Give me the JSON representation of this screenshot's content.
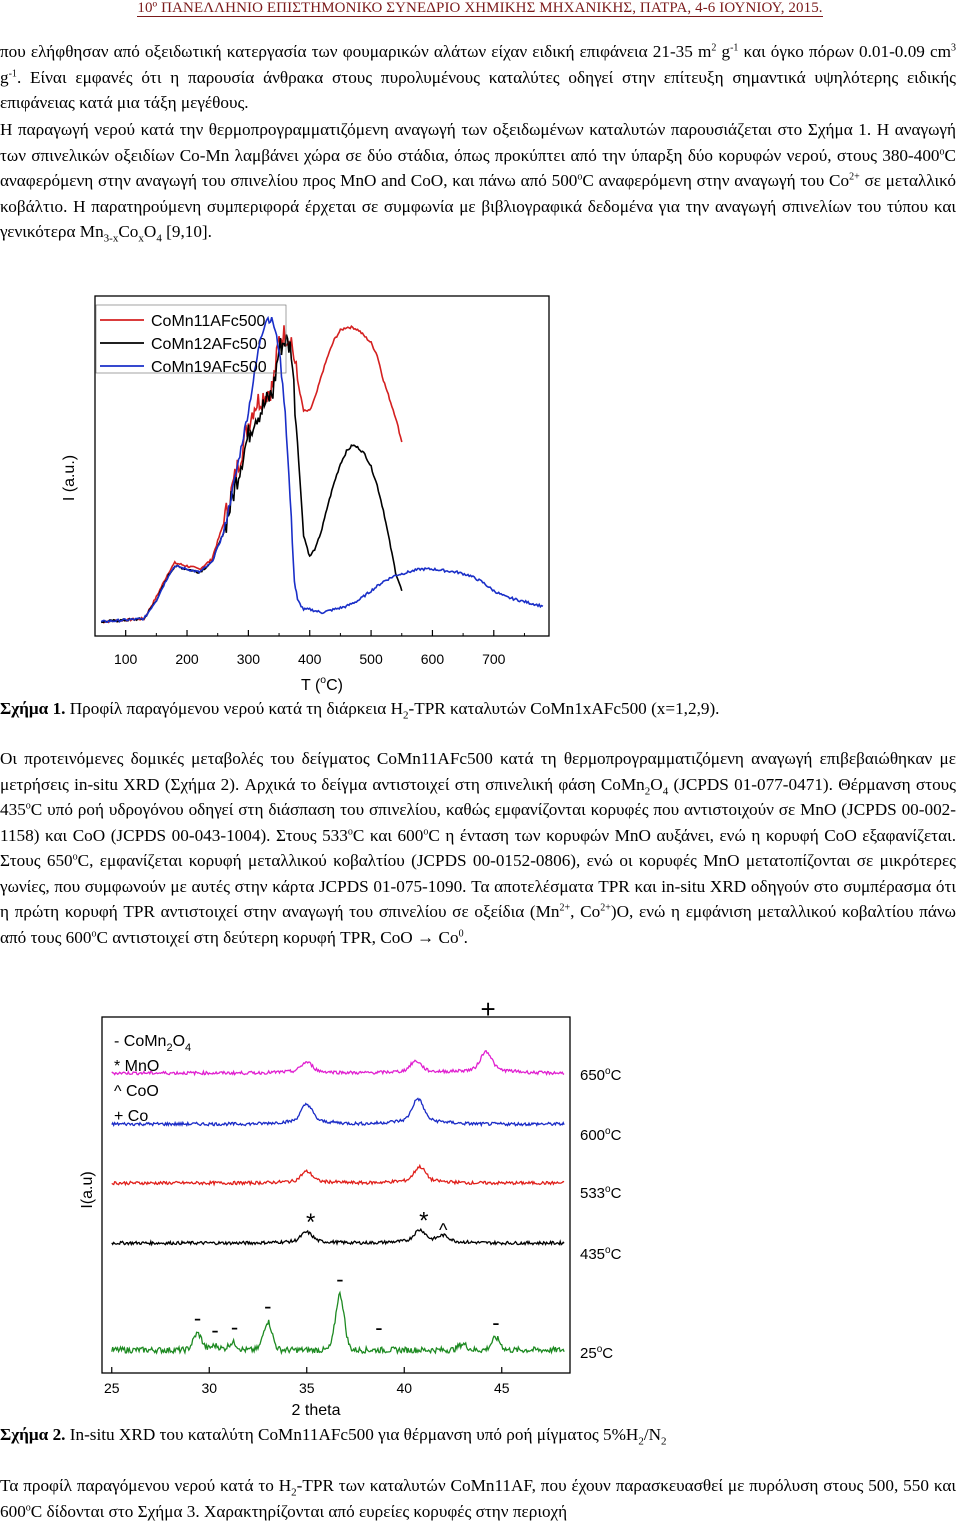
{
  "header": {
    "text": "10º ΠΑΝΕΛΛΗΝΙΟ ΕΠΙΣΤΗΜΟΝΙΚΟ ΣΥΝΕΔΡΙΟ ΧΗΜΙΚΗΣ ΜΗΧΑΝΙΚΗΣ, ΠΑΤΡΑ, 4-6 ΙΟΥΝΙΟΥ, 2015."
  },
  "para1": {
    "a": "που ελήφθησαν από οξειδωτική κατεργασία των φουμαρικών αλάτων είχαν ειδική επιφάνεια 21-35 m",
    "a_sup": "2",
    "b": " g",
    "b_sup": "-1",
    "c": " και όγκο πόρων 0.01-0.09 cm",
    "c_sup": "3",
    "d": " g",
    "d_sup": "-1",
    "e": ". Είναι εμφανές ότι η παρουσία άνθρακα στους πυρολυμένους καταλύτες οδηγεί στην επίτευξη σημαντικά υψηλότερης ειδικής επιφάνειας κατά μια τάξη μεγέθους."
  },
  "para2": {
    "a": "Η παραγωγή νερού κατά την θερμοπρογραμματιζόμενη αναγωγή των οξειδωμένων καταλυτών παρουσιάζεται στο Σχήμα 1. Η αναγωγή των σπινελικών οξειδίων Co-Mn λαμβάνει χώρα σε δύο στάδια, όπως προκύπτει από την ύπαρξη δύο κορυφών νερού, στους 380-400",
    "a_sup": "o",
    "b": "C αναφερόμενη στην αναγωγή του σπινελίου προς MnO and CoO, και πάνω από 500",
    "b_sup": "o",
    "c": "C αναφερόμενη στην αναγωγή του Co",
    "c_sup": "2+",
    "d": " σε μεταλλικό κοβάλτιο. Η παρατηρούμενη συμπεριφορά έρχεται σε συμφωνία με βιβλιογραφικά δεδομένα για την αναγωγή σπινελίων του τύπου και γενικότερα Mn",
    "d_sub": "3-x",
    "e": "Co",
    "e_sub": "x",
    "f": "O",
    "f_sub": "4",
    "g": " [9,10]."
  },
  "figure1": {
    "caption_bold": "Σχήμα 1.",
    "caption_a": " Προφίλ παραγόμενου νερού κατά τη διάρκεια H",
    "caption_sub": "2",
    "caption_b": "-TPR καταλυτών CoMn1xAFc500 (x=1,2,9).",
    "chart_data": {
      "type": "line",
      "xlabel": "T (oC)",
      "xlabel_main": "T (",
      "xlabel_sup": "o",
      "xlabel_end": "C)",
      "ylabel": "I (a.u.)",
      "xlim": [
        50,
        790
      ],
      "xticks": [
        "100",
        "200",
        "300",
        "400",
        "500",
        "600",
        "700"
      ],
      "legend_position": "top-left",
      "series": [
        {
          "name": "CoMn11AFc500",
          "color": "#d42020",
          "x": [
            60,
            130,
            150,
            170,
            180,
            200,
            220,
            240,
            260,
            270,
            280,
            290,
            300,
            310,
            320,
            330,
            340,
            350,
            360,
            370,
            380,
            390,
            400,
            410,
            420,
            430,
            440,
            450,
            460,
            470,
            480,
            490,
            500,
            510,
            520,
            530,
            540,
            550
          ],
          "values": [
            0.02,
            0.03,
            0.1,
            0.18,
            0.21,
            0.2,
            0.19,
            0.22,
            0.34,
            0.42,
            0.5,
            0.58,
            0.66,
            0.72,
            0.74,
            0.76,
            0.78,
            0.93,
            0.95,
            0.93,
            0.8,
            0.7,
            0.7,
            0.75,
            0.82,
            0.88,
            0.93,
            0.96,
            0.97,
            0.97,
            0.96,
            0.94,
            0.92,
            0.88,
            0.8,
            0.74,
            0.68,
            0.6
          ]
        },
        {
          "name": "CoMn12AFc500",
          "color": "#000000",
          "x": [
            60,
            130,
            150,
            170,
            180,
            200,
            220,
            240,
            260,
            280,
            290,
            300,
            310,
            320,
            330,
            340,
            350,
            360,
            370,
            380,
            390,
            400,
            410,
            420,
            430,
            440,
            450,
            460,
            470,
            480,
            490,
            500,
            510,
            520,
            530,
            540,
            550
          ],
          "values": [
            0.02,
            0.03,
            0.09,
            0.17,
            0.2,
            0.19,
            0.18,
            0.21,
            0.31,
            0.47,
            0.55,
            0.62,
            0.68,
            0.7,
            0.73,
            0.76,
            0.9,
            0.93,
            0.9,
            0.6,
            0.3,
            0.23,
            0.26,
            0.32,
            0.4,
            0.47,
            0.53,
            0.57,
            0.59,
            0.58,
            0.56,
            0.52,
            0.46,
            0.38,
            0.28,
            0.18,
            0.12
          ]
        },
        {
          "name": "CoMn19AFc500",
          "color": "#1a2fc8",
          "x": [
            60,
            130,
            150,
            170,
            180,
            200,
            220,
            240,
            260,
            280,
            300,
            320,
            330,
            340,
            350,
            360,
            370,
            375,
            380,
            390,
            400,
            420,
            440,
            460,
            480,
            500,
            520,
            540,
            560,
            580,
            600,
            620,
            640,
            660,
            680,
            700,
            720,
            740,
            760,
            780
          ],
          "values": [
            0.02,
            0.03,
            0.09,
            0.17,
            0.2,
            0.19,
            0.18,
            0.21,
            0.31,
            0.5,
            0.7,
            0.94,
            1.0,
            0.99,
            0.9,
            0.7,
            0.35,
            0.15,
            0.09,
            0.06,
            0.06,
            0.05,
            0.06,
            0.07,
            0.09,
            0.12,
            0.15,
            0.17,
            0.18,
            0.19,
            0.19,
            0.185,
            0.18,
            0.17,
            0.15,
            0.12,
            0.1,
            0.09,
            0.08,
            0.07
          ]
        }
      ]
    }
  },
  "para3": {
    "a": "Οι προτεινόμενες δομικές μεταβολές του δείγματος CoMn11AFc500 κατά τη θερμοπρογραμματιζόμενη αναγωγή επιβεβαιώθηκαν με μετρήσεις in-situ XRD (Σχήμα 2). Αρχικά το δείγμα αντιστοιχεί στη σπινελική φάση CoMn",
    "a_sub": "2",
    "b": "O",
    "b_sub": "4",
    "c": " (JCPDS 01-077-0471). Θέρμανση στους 435",
    "c_sup": "o",
    "d": "C υπό ροή υδρογόνου οδηγεί στη διάσπαση του σπινελίου, καθώς εμφανίζονται κορυφές που αντιστοιχούν σε MnO (JCPDS 00-002-1158) και CoO (JCPDS 00-043-1004). Στους 533",
    "d_sup": "o",
    "e": "C και 600",
    "e_sup": "o",
    "f": "C η ένταση των κορυφών MnO αυξάνει, ενώ η κορυφή CoO εξαφανίζεται. Στους 650",
    "f_sup": "o",
    "g": "C, εμφανίζεται κορυφή μεταλλικού κοβαλτίου (JCPDS 00-0152-0806), ενώ οι κορυφές MnO μετατοπίζονται σε μικρότερες γωνίες, που συμφωνούν με αυτές στην κάρτα JCPDS 01-075-1090. Τα αποτελέσματα TPR και in-situ XRD οδηγούν στο συμπέρασμα ότι η πρώτη κορυφή TPR αντιστοιχεί στην αναγωγή του σπινελίου σε οξείδια (Mn",
    "g_sup": "2+",
    "h": ", Co",
    "h_sup": "2+",
    "i": ")O, ενώ η εμφάνιση μεταλλικού κοβαλτίου πάνω από τους 600",
    "i_sup": "o",
    "j": "C αντιστοιχεί στη δεύτερη κορυφή TPR, CoO → Co",
    "j_sup": "0",
    "k": "."
  },
  "figure2": {
    "caption_bold": "Σχήμα 2.",
    "caption_a": "  In-situ XRD του καταλύτη CoMn11AFc500 για θέρμανση υπό ροή μίγματος 5%H",
    "caption_sub1": "2",
    "caption_b": "/N",
    "caption_sub2": "2",
    "chart_data": {
      "type": "line",
      "xlabel": "2 theta",
      "ylabel": "I(a.u)",
      "xlim": [
        24.5,
        48.5
      ],
      "xticks": [
        "25",
        "30",
        "35",
        "40",
        "45"
      ],
      "legend": [
        "- CoMn2O4",
        "* MnO",
        "^ CoO",
        "+ Co"
      ],
      "legend_lines": [
        {
          "a": "- CoMn",
          "sub1": "2",
          "b": "O",
          "sub2": "4"
        },
        {
          "a": "*  MnO"
        },
        {
          "a": "^ CoO"
        },
        {
          "a": "+ Co"
        }
      ],
      "series": [
        {
          "name": "25oC",
          "label_main": "25",
          "label_sup": "o",
          "label_end": "C",
          "color": "#1e8a22",
          "peaks": [
            [
              29.4,
              0.55
            ],
            [
              30.3,
              0.15
            ],
            [
              31.2,
              0.25
            ],
            [
              33.0,
              0.95
            ],
            [
              36.7,
              1.85
            ],
            [
              43.0,
              0.2
            ],
            [
              44.7,
              0.4
            ]
          ]
        },
        {
          "name": "435oC",
          "label_main": "435",
          "label_sup": "o",
          "label_end": "C",
          "color": "#000000",
          "peaks": [
            [
              35.0,
              0.3
            ],
            [
              40.8,
              0.35
            ],
            [
              42.0,
              0.18
            ]
          ]
        },
        {
          "name": "533oC",
          "label_main": "533",
          "label_sup": "o",
          "label_end": "C",
          "color": "#e0201b",
          "peaks": [
            [
              35.0,
              0.32
            ],
            [
              40.8,
              0.45
            ]
          ]
        },
        {
          "name": "600oC",
          "label_main": "600",
          "label_sup": "o",
          "label_end": "C",
          "color": "#1a2bc6",
          "peaks": [
            [
              35.0,
              0.55
            ],
            [
              40.7,
              0.7
            ]
          ]
        },
        {
          "name": "650oC",
          "label_main": "650",
          "label_sup": "o",
          "label_end": "C",
          "color": "#e020d0",
          "peaks": [
            [
              35.0,
              0.3
            ],
            [
              40.6,
              0.33
            ],
            [
              44.2,
              0.6
            ]
          ]
        }
      ],
      "annotations": [
        {
          "text": "+",
          "x": 44.3,
          "curve": "650oC"
        },
        {
          "text": "*",
          "x": 35.2,
          "curve": "435oC"
        },
        {
          "text": "*",
          "x": 41.0,
          "curve": "435oC"
        },
        {
          "text": "^",
          "x": 42.0,
          "curve": "435oC"
        },
        {
          "text": "-",
          "x": 36.7,
          "curve": "25oC"
        },
        {
          "text": "-",
          "x": 33.0,
          "curve": "25oC"
        },
        {
          "text": "-",
          "x": 29.4,
          "curve": "25oC"
        },
        {
          "text": "-",
          "x": 30.3,
          "curve": "25oC"
        },
        {
          "text": "-",
          "x": 31.3,
          "curve": "25oC"
        },
        {
          "text": "-",
          "x": 38.7,
          "curve": "25oC"
        },
        {
          "text": "-",
          "x": 44.7,
          "curve": "25oC"
        }
      ]
    }
  },
  "para4": {
    "a": "Τα προφίλ παραγόμενου νερού κατά το H",
    "a_sub": "2",
    "b": "-TPR των καταλυτών CoMn11AF, που έχουν παρασκευασθεί με πυρόλυση στους 500, 550 και 600",
    "b_sup": "o",
    "c": "C δίδονται στο Σχήμα 3. Χαρακτηρίζονται από ευρείες κορυφές στην περιοχή"
  }
}
